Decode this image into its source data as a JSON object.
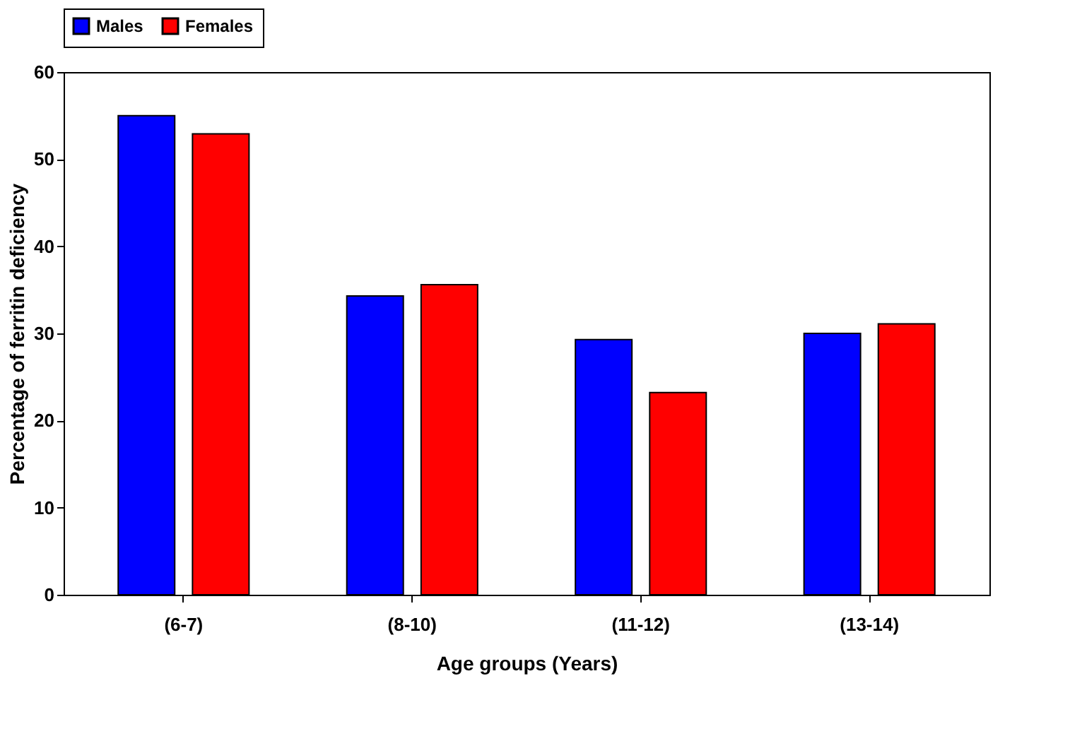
{
  "chart_data": {
    "type": "bar",
    "xlabel": "Age groups (Years)",
    "ylabel": "Percentage of  ferritin deficiency",
    "categories": [
      "(6-7)",
      "(8-10)",
      "(11-12)",
      "(13-14)"
    ],
    "series": [
      {
        "name": "Males",
        "color": "#0000ff",
        "values": [
          55,
          34.3,
          29.3,
          30
        ]
      },
      {
        "name": "Females",
        "color": "#ff0000",
        "values": [
          52.9,
          35.6,
          23.2,
          31.1
        ]
      }
    ],
    "ylim": [
      0,
      60
    ],
    "yticks": [
      0,
      10,
      20,
      30,
      40,
      50,
      60
    ],
    "grid": false,
    "legend": "top"
  }
}
